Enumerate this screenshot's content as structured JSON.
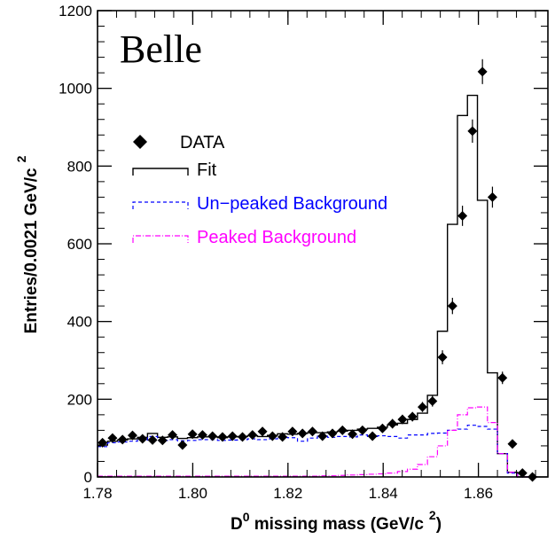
{
  "chart_data": {
    "type": "scatter",
    "title": "",
    "experiment_label": "Belle",
    "xlabel": {
      "main": "D",
      "sup": "0",
      "rest": " missing mass (GeV/c",
      "sup2": "2",
      "end": ")"
    },
    "ylabel": {
      "main": "Entries/0.0021 GeV/c",
      "sup": "2"
    },
    "xlim": [
      1.78,
      1.8746
    ],
    "ylim": [
      0,
      1200
    ],
    "xticks": [
      1.78,
      1.8,
      1.82,
      1.84,
      1.86
    ],
    "xtick_labels": [
      "1.78",
      "1.80",
      "1.82",
      "1.84",
      "1.86"
    ],
    "yticks": [
      0,
      200,
      400,
      600,
      800,
      1000,
      1200
    ],
    "ytick_labels": [
      "0",
      "200",
      "400",
      "600",
      "800",
      "1000",
      "1200"
    ],
    "bin_width": 0.0021,
    "bin_start": 1.78,
    "legend": [
      {
        "label": "DATA",
        "style": "marker",
        "color": "#000000"
      },
      {
        "label": "Fit",
        "style": "solid",
        "color": "#000000"
      },
      {
        "label": "Un−peaked Background",
        "style": "dashed",
        "color": "#0000ff"
      },
      {
        "label": "Peaked Background",
        "style": "dashdot",
        "color": "#ff00ff"
      }
    ],
    "series": [
      {
        "name": "DATA",
        "kind": "points",
        "values": [
          88,
          100,
          96,
          107,
          98,
          95,
          94,
          108,
          82,
          110,
          108,
          105,
          103,
          105,
          103,
          108,
          117,
          105,
          103,
          117,
          112,
          117,
          105,
          112,
          120,
          110,
          120,
          105,
          125,
          137,
          148,
          155,
          180,
          195,
          308,
          440,
          672,
          890,
          1043,
          720,
          255,
          85,
          10,
          0
        ],
        "errors": [
          9,
          10,
          10,
          10,
          10,
          10,
          10,
          10,
          9,
          10,
          10,
          10,
          10,
          10,
          10,
          10,
          11,
          10,
          10,
          11,
          11,
          11,
          10,
          11,
          11,
          11,
          11,
          10,
          11,
          12,
          12,
          12,
          13,
          14,
          18,
          21,
          26,
          30,
          32,
          27,
          16,
          9,
          3,
          0
        ]
      },
      {
        "name": "Fit",
        "kind": "histogram",
        "values": [
          82,
          92,
          95,
          98,
          102,
          112,
          102,
          103,
          99,
          101,
          103,
          103,
          101,
          103,
          104,
          106,
          104,
          107,
          111,
          110,
          112,
          114,
          114,
          116,
          118,
          120,
          123,
          125,
          128,
          134,
          138,
          148,
          164,
          210,
          375,
          650,
          930,
          982,
          712,
          268,
          60,
          12,
          0,
          0
        ]
      },
      {
        "name": "Un−peaked Background",
        "kind": "histogram",
        "values": [
          78,
          88,
          90,
          92,
          95,
          104,
          94,
          96,
          93,
          94,
          96,
          96,
          94,
          95,
          96,
          98,
          96,
          98,
          102,
          101,
          92,
          100,
          105,
          102,
          104,
          103,
          108,
          104,
          106,
          104,
          100,
          108,
          108,
          112,
          113,
          120,
          123,
          133,
          130,
          123,
          60,
          10,
          0,
          0
        ]
      },
      {
        "name": "Peaked Background",
        "kind": "histogram",
        "values": [
          2,
          2,
          2,
          2,
          2,
          2,
          2,
          2,
          2,
          2,
          2,
          2,
          2,
          2,
          2,
          2,
          2,
          2,
          2,
          2,
          2,
          2,
          3,
          3,
          4,
          5,
          6,
          7,
          8,
          10,
          14,
          20,
          32,
          52,
          80,
          120,
          160,
          178,
          180,
          140,
          60,
          12,
          0,
          0
        ]
      }
    ]
  }
}
